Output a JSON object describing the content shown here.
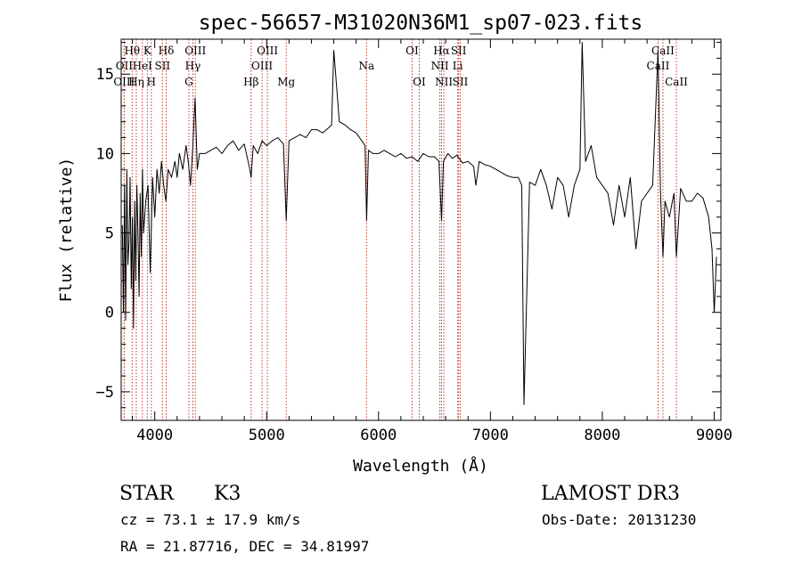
{
  "chart_data": {
    "type": "line",
    "title": "spec-56657-M31020N36M1_sp07-023.fits",
    "xlabel": "Wavelength (Å)",
    "ylabel": "Flux (relative)",
    "xlim": [
      3700,
      9060
    ],
    "ylim": [
      -6.8,
      17.2
    ],
    "xticks": [
      4000,
      5000,
      6000,
      7000,
      8000,
      9000
    ],
    "xtick_labels": [
      "4000",
      "5000",
      "6000",
      "7000",
      "8000",
      "9000"
    ],
    "yticks": [
      -5,
      0,
      5,
      10,
      15
    ],
    "ytick_labels": [
      "−5",
      "0",
      "5",
      "10",
      "15"
    ],
    "grid": false,
    "series": [
      {
        "name": "spectrum",
        "x": [
          3710,
          3720,
          3730,
          3740,
          3750,
          3760,
          3770,
          3780,
          3790,
          3800,
          3810,
          3820,
          3830,
          3840,
          3850,
          3860,
          3870,
          3880,
          3890,
          3900,
          3920,
          3940,
          3960,
          3980,
          4000,
          4020,
          4040,
          4060,
          4080,
          4100,
          4120,
          4150,
          4180,
          4200,
          4220,
          4250,
          4280,
          4300,
          4320,
          4340,
          4360,
          4380,
          4400,
          4450,
          4500,
          4550,
          4600,
          4650,
          4700,
          4750,
          4800,
          4850,
          4861,
          4880,
          4920,
          4960,
          5000,
          5050,
          5100,
          5150,
          5175,
          5200,
          5250,
          5300,
          5350,
          5400,
          5450,
          5500,
          5550,
          5580,
          5600,
          5650,
          5700,
          5750,
          5800,
          5850,
          5880,
          5893,
          5910,
          5950,
          6000,
          6050,
          6100,
          6150,
          6200,
          6250,
          6300,
          6350,
          6400,
          6450,
          6500,
          6540,
          6563,
          6580,
          6620,
          6660,
          6700,
          6750,
          6800,
          6850,
          6870,
          6900,
          6950,
          7000,
          7050,
          7100,
          7150,
          7200,
          7250,
          7280,
          7300,
          7350,
          7400,
          7450,
          7500,
          7550,
          7600,
          7650,
          7700,
          7750,
          7800,
          7820,
          7850,
          7900,
          7950,
          8000,
          8050,
          8100,
          8150,
          8200,
          8250,
          8300,
          8350,
          8400,
          8450,
          8498,
          8520,
          8542,
          8560,
          8600,
          8640,
          8662,
          8700,
          8750,
          8800,
          8850,
          8900,
          8950,
          8980,
          9000,
          9020
        ],
        "values": [
          5.5,
          0.0,
          8.0,
          -0.5,
          9.0,
          3.0,
          4.5,
          8.5,
          1.5,
          6.0,
          -1.0,
          7.0,
          2.0,
          8.0,
          5.0,
          1.0,
          7.5,
          3.5,
          9.0,
          5.0,
          7.0,
          8.0,
          2.5,
          8.5,
          6.0,
          9.0,
          7.5,
          9.5,
          8.0,
          7.0,
          9.0,
          8.5,
          9.5,
          8.5,
          10.0,
          9.0,
          10.5,
          9.5,
          8.0,
          10.5,
          13.5,
          9.0,
          10.0,
          10.0,
          10.2,
          10.4,
          10.0,
          10.5,
          10.8,
          10.2,
          10.6,
          9.0,
          8.5,
          10.5,
          10.0,
          10.8,
          10.5,
          10.8,
          11.0,
          10.6,
          5.8,
          10.8,
          11.0,
          11.2,
          11.0,
          11.5,
          11.5,
          11.3,
          11.6,
          11.8,
          16.5,
          12.0,
          11.8,
          11.5,
          11.3,
          10.8,
          10.5,
          5.8,
          10.2,
          10.0,
          10.0,
          10.2,
          10.0,
          9.8,
          10.0,
          9.7,
          9.8,
          9.5,
          10.0,
          9.8,
          9.8,
          9.5,
          5.8,
          9.5,
          10.0,
          9.7,
          9.9,
          9.4,
          9.5,
          9.2,
          8.0,
          9.5,
          9.3,
          9.2,
          9.0,
          8.8,
          8.6,
          8.5,
          8.5,
          8.0,
          -5.8,
          8.2,
          8.0,
          9.0,
          8.0,
          6.5,
          8.5,
          8.0,
          6.0,
          8.0,
          9.0,
          17.0,
          9.5,
          10.5,
          8.5,
          8.0,
          7.5,
          5.5,
          8.0,
          6.0,
          8.5,
          4.0,
          7.0,
          7.5,
          8.0,
          16.5,
          7.5,
          3.5,
          7.0,
          6.0,
          7.5,
          3.5,
          7.8,
          7.0,
          7.0,
          7.5,
          7.2,
          6.0,
          4.0,
          0.0,
          3.5
        ]
      }
    ],
    "line_markers": [
      {
        "label": "Hθ",
        "x": 3798,
        "row": 1
      },
      {
        "label": "OII",
        "x": 3727,
        "row": 2
      },
      {
        "label": "OIII",
        "x": 3727,
        "row": 3
      },
      {
        "label": "K",
        "x": 3934,
        "row": 1
      },
      {
        "label": "HeI",
        "x": 3889,
        "row": 2
      },
      {
        "label": "Hη",
        "x": 3835,
        "row": 3
      },
      {
        "label": "SII",
        "x": 4069,
        "row": 2
      },
      {
        "label": "H",
        "x": 3969,
        "row": 3
      },
      {
        "label": "Hδ",
        "x": 4102,
        "row": 1
      },
      {
        "label": "OIII",
        "x": 4363,
        "row": 1
      },
      {
        "label": "Hγ",
        "x": 4341,
        "row": 2
      },
      {
        "label": "G",
        "x": 4305,
        "row": 3
      },
      {
        "label": "Hβ",
        "x": 4861,
        "row": 3
      },
      {
        "label": "OIII",
        "x": 5007,
        "row": 1
      },
      {
        "label": "OIII",
        "x": 4959,
        "row": 2
      },
      {
        "label": "Mg",
        "x": 5175,
        "row": 3
      },
      {
        "label": "Na",
        "x": 5893,
        "row": 2
      },
      {
        "label": "OI",
        "x": 6300,
        "row": 1
      },
      {
        "label": "OI",
        "x": 6364,
        "row": 3
      },
      {
        "label": "Hα",
        "x": 6563,
        "row": 1
      },
      {
        "label": "SII",
        "x": 6716,
        "row": 1
      },
      {
        "label": "NII",
        "x": 6548,
        "row": 2
      },
      {
        "label": "Li",
        "x": 6708,
        "row": 2
      },
      {
        "label": "NII",
        "x": 6584,
        "row": 3
      },
      {
        "label": "SII",
        "x": 6731,
        "row": 3
      },
      {
        "label": "CaII",
        "x": 8542,
        "row": 1
      },
      {
        "label": "CaII",
        "x": 8498,
        "row": 2
      },
      {
        "label": "CaII",
        "x": 8662,
        "row": 3
      }
    ]
  },
  "info": {
    "class_label": "STAR",
    "subclass": "K3",
    "survey": "LAMOST DR3",
    "redshift": "cz =  73.1 ± 17.9 km/s",
    "obs_date": "Obs-Date: 20131230",
    "coords": "RA =  21.87716, DEC =  34.81997"
  }
}
